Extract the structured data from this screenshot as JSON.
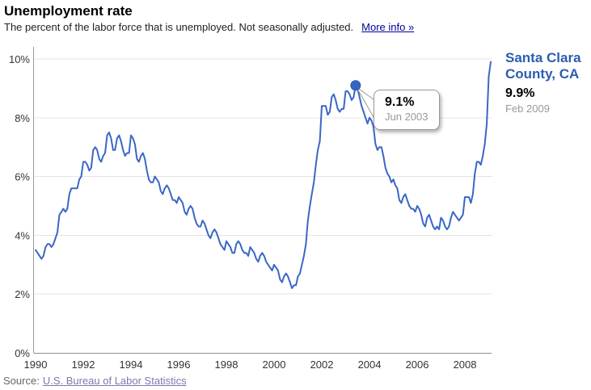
{
  "header": {
    "title": "Unemployment rate",
    "subtitle": "The percent of the labor force that is unemployed. Not seasonally adjusted.",
    "more_info": "More info »"
  },
  "panel": {
    "series_name": "Santa Clara County, CA",
    "current_value": "9.9%",
    "current_date": "Feb 2009"
  },
  "tooltip": {
    "value": "9.1%",
    "date": "Jun 2003"
  },
  "source": {
    "label": "Source:",
    "link": "U.S. Bureau of Labor Statistics"
  },
  "chart_data": {
    "type": "line",
    "title": "Unemployment rate",
    "unit": "percent",
    "frequency": "monthly",
    "start_month": "Jan 1990",
    "end_month": "Feb 2009",
    "ylim": [
      0,
      10
    ],
    "grid": true,
    "line_color": "#3A67C6",
    "marker_color": "#3565C0",
    "yticks": [
      {
        "value": 0,
        "label": "0%"
      },
      {
        "value": 2,
        "label": "2%"
      },
      {
        "value": 4,
        "label": "4%"
      },
      {
        "value": 6,
        "label": "6%"
      },
      {
        "value": 8,
        "label": "8%"
      },
      {
        "value": 10,
        "label": "10%"
      }
    ],
    "xticks": [
      {
        "index": 0,
        "label": "1990"
      },
      {
        "index": 24,
        "label": "1992"
      },
      {
        "index": 48,
        "label": "1994"
      },
      {
        "index": 72,
        "label": "1996"
      },
      {
        "index": 96,
        "label": "1998"
      },
      {
        "index": 120,
        "label": "2000"
      },
      {
        "index": 144,
        "label": "2002"
      },
      {
        "index": 168,
        "label": "2004"
      },
      {
        "index": 192,
        "label": "2006"
      },
      {
        "index": 216,
        "label": "2008"
      }
    ],
    "annotation": {
      "index": 161,
      "value": 9.1,
      "label": "9.1%",
      "date": "Jun 2003"
    },
    "series": [
      {
        "name": "Santa Clara County, CA",
        "values": [
          3.5,
          3.4,
          3.3,
          3.2,
          3.3,
          3.6,
          3.7,
          3.7,
          3.6,
          3.7,
          3.9,
          4.1,
          4.7,
          4.8,
          4.9,
          4.8,
          4.9,
          5.4,
          5.6,
          5.6,
          5.6,
          5.6,
          5.9,
          6.0,
          6.5,
          6.5,
          6.4,
          6.2,
          6.3,
          6.9,
          7.0,
          6.9,
          6.6,
          6.5,
          6.7,
          6.8,
          7.4,
          7.5,
          7.3,
          6.9,
          6.9,
          7.3,
          7.4,
          7.2,
          6.9,
          6.7,
          6.8,
          6.8,
          7.4,
          7.3,
          7.1,
          6.6,
          6.5,
          6.7,
          6.8,
          6.6,
          6.2,
          5.9,
          5.8,
          5.8,
          6.0,
          5.9,
          5.8,
          5.5,
          5.4,
          5.6,
          5.7,
          5.6,
          5.4,
          5.2,
          5.2,
          5.1,
          5.3,
          5.2,
          5.1,
          4.8,
          4.7,
          4.9,
          5.0,
          4.9,
          4.6,
          4.4,
          4.3,
          4.3,
          4.5,
          4.4,
          4.2,
          4.0,
          3.9,
          4.1,
          4.2,
          4.1,
          3.9,
          3.7,
          3.6,
          3.5,
          3.8,
          3.7,
          3.6,
          3.4,
          3.4,
          3.7,
          3.8,
          3.7,
          3.5,
          3.4,
          3.4,
          3.3,
          3.6,
          3.5,
          3.4,
          3.2,
          3.1,
          3.3,
          3.4,
          3.3,
          3.1,
          3.0,
          2.9,
          2.8,
          3.0,
          2.9,
          2.8,
          2.5,
          2.4,
          2.6,
          2.7,
          2.6,
          2.4,
          2.2,
          2.3,
          2.3,
          2.6,
          2.7,
          3.0,
          3.3,
          3.7,
          4.5,
          5.0,
          5.4,
          5.8,
          6.4,
          6.9,
          7.2,
          8.4,
          8.4,
          8.4,
          8.1,
          8.2,
          8.7,
          8.8,
          8.6,
          8.3,
          8.2,
          8.3,
          8.3,
          8.9,
          8.9,
          8.8,
          8.6,
          8.7,
          9.1,
          9.0,
          8.7,
          8.4,
          8.2,
          8.0,
          7.8,
          8.0,
          7.9,
          7.7,
          7.1,
          6.9,
          7.0,
          7.0,
          6.7,
          6.3,
          6.1,
          6.0,
          5.8,
          5.9,
          5.7,
          5.6,
          5.2,
          5.1,
          5.3,
          5.4,
          5.2,
          5.0,
          4.9,
          4.9,
          4.8,
          5.0,
          4.9,
          4.7,
          4.4,
          4.3,
          4.6,
          4.7,
          4.5,
          4.3,
          4.2,
          4.3,
          4.2,
          4.6,
          4.5,
          4.3,
          4.2,
          4.3,
          4.6,
          4.8,
          4.7,
          4.6,
          4.5,
          4.6,
          4.7,
          5.3,
          5.3,
          5.3,
          5.1,
          5.4,
          6.1,
          6.5,
          6.5,
          6.4,
          6.7,
          7.1,
          7.8,
          9.4,
          9.9
        ]
      }
    ]
  }
}
